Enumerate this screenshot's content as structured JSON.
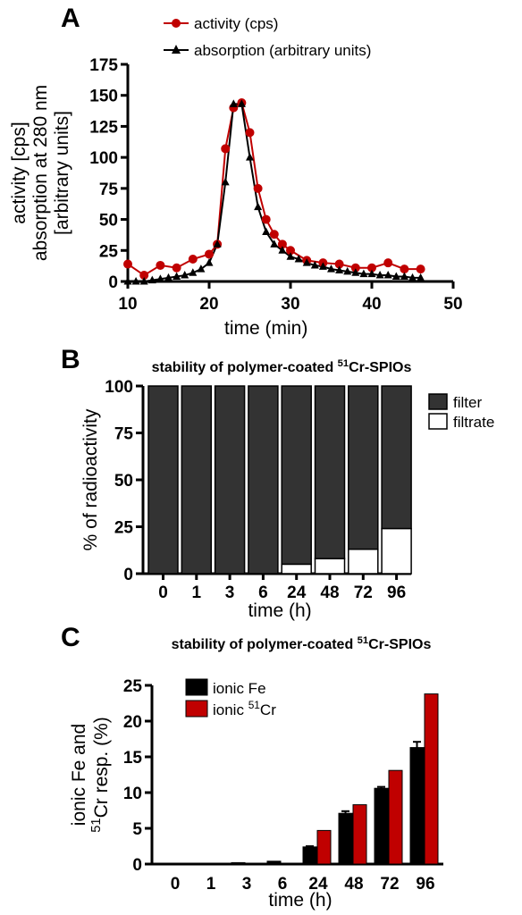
{
  "chart_data": [
    {
      "panel": "A",
      "type": "line",
      "ylabel": [
        "activity [cps]",
        "absorption at 280 nm",
        "[arbitrary units]"
      ],
      "xlabel": "time (min)",
      "xlim": [
        10,
        50
      ],
      "ylim": [
        0,
        175
      ],
      "xticks": [
        10,
        20,
        30,
        40,
        50
      ],
      "yticks": [
        0,
        25,
        50,
        75,
        100,
        125,
        150,
        175
      ],
      "legend_placement": "top",
      "series": [
        {
          "name": "activity (cps)",
          "marker": "circle",
          "color": "#c00000",
          "x": [
            10,
            12,
            14,
            16,
            18,
            20,
            21,
            22,
            23,
            24,
            25,
            26,
            27,
            28,
            29,
            30,
            32,
            34,
            36,
            38,
            40,
            42,
            44,
            46
          ],
          "y": [
            14,
            5,
            13,
            11,
            18,
            22,
            30,
            107,
            140,
            144,
            120,
            75,
            50,
            38,
            30,
            25,
            17,
            15,
            14,
            11,
            11,
            15,
            10,
            10
          ]
        },
        {
          "name": "absorption (arbitrary units)",
          "marker": "triangle",
          "color": "#000000",
          "x": [
            10,
            11,
            12,
            13,
            14,
            15,
            16,
            17,
            18,
            19,
            20,
            21,
            22,
            23,
            24,
            25,
            26,
            27,
            28,
            29,
            30,
            31,
            32,
            33,
            34,
            35,
            36,
            37,
            38,
            39,
            40,
            41,
            42,
            43,
            44,
            45,
            46
          ],
          "y": [
            0,
            0,
            0,
            1,
            2,
            3,
            4,
            5,
            7,
            10,
            15,
            30,
            80,
            143,
            143,
            100,
            60,
            40,
            30,
            25,
            20,
            18,
            15,
            13,
            12,
            10,
            9,
            8,
            7,
            6,
            6,
            5,
            5,
            4,
            4,
            3,
            3
          ]
        }
      ]
    },
    {
      "panel": "B",
      "type": "bar",
      "title": [
        "stability of polymer-coated ",
        "51",
        "Cr-SPIOs"
      ],
      "ylabel": "% of radioactivity",
      "xlabel": "time (h)",
      "ylim": [
        0,
        100
      ],
      "yticks": [
        0,
        25,
        50,
        75,
        100
      ],
      "categories": [
        "0",
        "1",
        "3",
        "6",
        "24",
        "48",
        "72",
        "96"
      ],
      "stacked": true,
      "legend_placement": "right",
      "series": [
        {
          "name": "filter",
          "color": "#333333",
          "values": [
            100,
            100,
            100,
            100,
            95,
            92,
            87,
            76
          ]
        },
        {
          "name": "filtrate",
          "color": "#ffffff",
          "values": [
            0,
            0,
            0,
            0,
            5,
            8,
            13,
            24
          ]
        }
      ]
    },
    {
      "panel": "C",
      "type": "bar",
      "title": [
        "stability of polymer-coated ",
        "51",
        "Cr-SPIOs"
      ],
      "ylabel": [
        "ionic Fe and",
        "51",
        "Cr resp. (%)"
      ],
      "xlabel": "time (h)",
      "ylim": [
        0,
        25
      ],
      "yticks": [
        0,
        5,
        10,
        15,
        20,
        25
      ],
      "categories": [
        "0",
        "1",
        "3",
        "6",
        "24",
        "48",
        "72",
        "96"
      ],
      "legend_placement": "top-left",
      "series": [
        {
          "name": "ionic Fe",
          "color": "#000000",
          "values": [
            0.1,
            0.1,
            0.2,
            0.4,
            2.4,
            7.1,
            10.6,
            16.3
          ],
          "errors": [
            0,
            0,
            0,
            0,
            0.1,
            0.3,
            0.2,
            0.8
          ]
        },
        {
          "name": [
            "ionic ",
            "51",
            "Cr"
          ],
          "color": "#c00000",
          "values": [
            0,
            0,
            0,
            0,
            4.7,
            8.3,
            13.1,
            23.8
          ],
          "errors": [
            0,
            0,
            0,
            0,
            0,
            0,
            0,
            0
          ]
        }
      ]
    }
  ]
}
